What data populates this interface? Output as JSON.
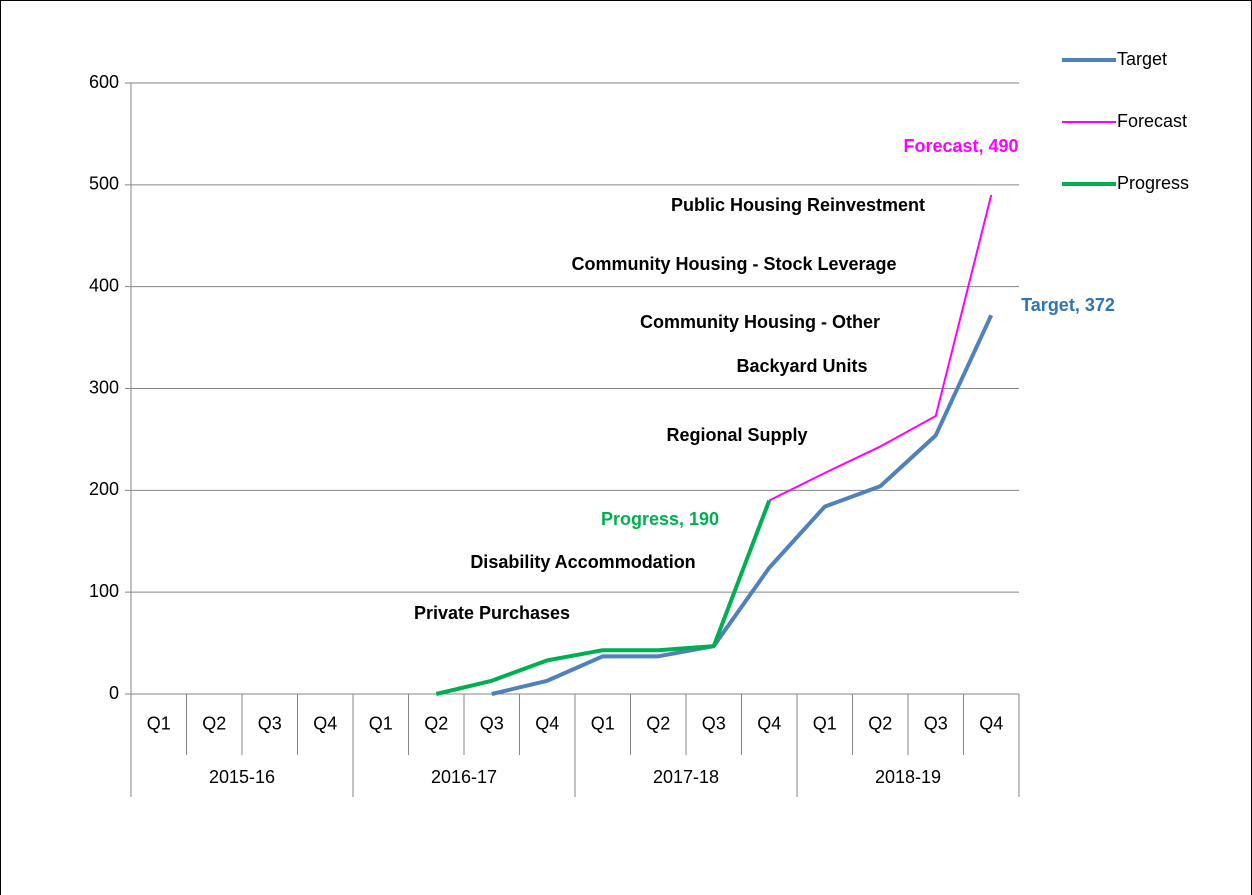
{
  "chart_data": {
    "type": "line",
    "categories": [
      "Q1",
      "Q2",
      "Q3",
      "Q4",
      "Q1",
      "Q2",
      "Q3",
      "Q4",
      "Q1",
      "Q2",
      "Q3",
      "Q4",
      "Q1",
      "Q2",
      "Q3",
      "Q4"
    ],
    "groups": [
      "2015-16",
      "2016-17",
      "2017-18",
      "2018-19"
    ],
    "series": [
      {
        "name": "Target",
        "color": "#4f81bd",
        "values": [
          null,
          null,
          null,
          null,
          null,
          null,
          0,
          13,
          37,
          37,
          47,
          124,
          184,
          204,
          254,
          372
        ]
      },
      {
        "name": "Forecast",
        "color": "#ff00ff",
        "values": [
          null,
          null,
          null,
          null,
          null,
          null,
          null,
          null,
          null,
          null,
          null,
          190,
          217,
          243,
          273,
          490
        ]
      },
      {
        "name": "Progress",
        "color": "#00b050",
        "values": [
          null,
          null,
          null,
          null,
          null,
          0,
          13,
          33,
          43,
          43,
          47,
          190,
          null,
          null,
          null,
          null
        ]
      }
    ],
    "ylim": [
      0,
      600
    ],
    "yticks": [
      0,
      100,
      200,
      300,
      400,
      500,
      600
    ],
    "grid": true,
    "legend": "top-right",
    "annotations": [
      {
        "text": "Forecast, 490",
        "color": "#ff00ff"
      },
      {
        "text": "Public Housing Reinvestment",
        "color": "#000000"
      },
      {
        "text": "Community Housing - Stock Leverage",
        "color": "#000000"
      },
      {
        "text": "Target, 372",
        "color": "#2e75b6"
      },
      {
        "text": "Community Housing - Other",
        "color": "#000000"
      },
      {
        "text": "Backyard Units",
        "color": "#000000"
      },
      {
        "text": "Regional Supply",
        "color": "#000000"
      },
      {
        "text": "Progress, 190",
        "color": "#00b050"
      },
      {
        "text": "Disability Accommodation",
        "color": "#000000"
      },
      {
        "text": "Private Purchases",
        "color": "#000000"
      }
    ]
  }
}
